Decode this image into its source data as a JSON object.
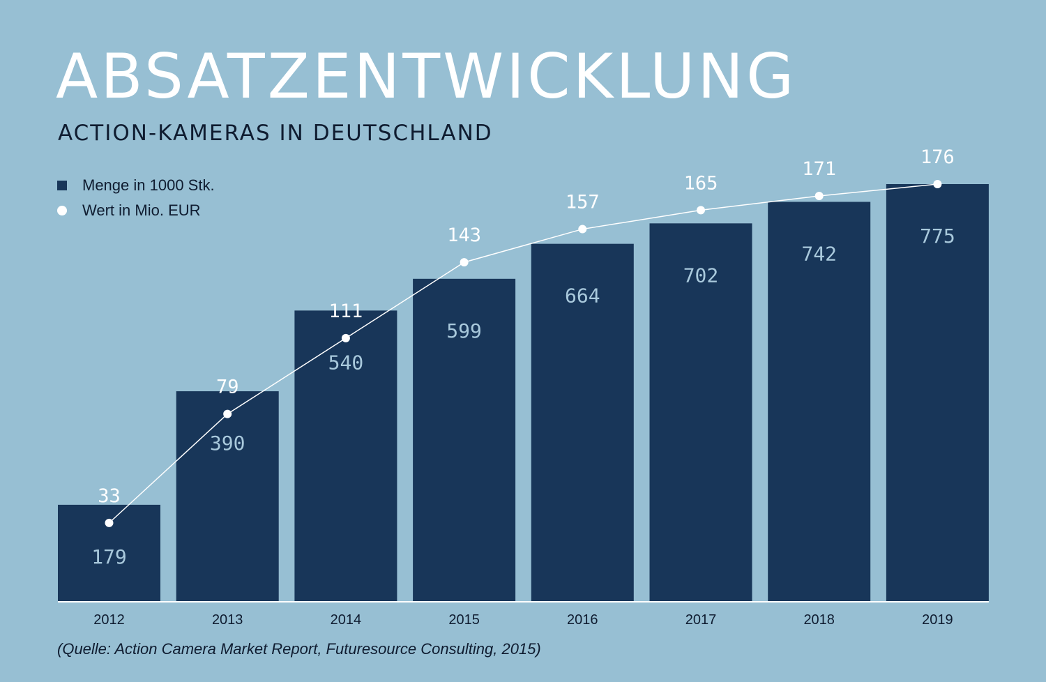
{
  "title": "ABSATZENTWICKLUNG",
  "subtitle": "ACTION-KAMERAS IN DEUTSCHLAND",
  "source": "(Quelle: Action Camera Market Report, Futuresource Consulting, 2015)",
  "colors": {
    "background": "#97bfd3",
    "bar": "#183659",
    "bar_label": "#a9c9dc",
    "line": "#ffffff",
    "text_dark": "#0f1c30"
  },
  "legend": {
    "bars_label": "Menge in 1000 Stk.",
    "line_label": "Wert in Mio. EUR"
  },
  "chart_data": {
    "type": "bar",
    "categories": [
      "2012",
      "2013",
      "2014",
      "2015",
      "2016",
      "2017",
      "2018",
      "2019"
    ],
    "series": [
      {
        "name": "Menge in 1000 Stk.",
        "type": "bar",
        "values": [
          179,
          390,
          540,
          599,
          664,
          702,
          742,
          775
        ]
      },
      {
        "name": "Wert in Mio. EUR",
        "type": "line",
        "values": [
          33,
          79,
          111,
          143,
          157,
          165,
          171,
          176
        ]
      }
    ],
    "ylim": [
      0,
      775
    ],
    "line_ylim": [
      0,
      176
    ],
    "grid": false,
    "legend_position": "top-left"
  }
}
